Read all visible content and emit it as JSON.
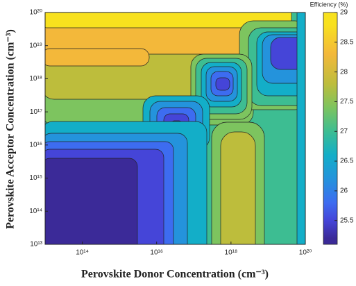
{
  "chart_data": {
    "type": "contour",
    "colorbar_label": "Efficiency (%)",
    "xlabel": "Perovskite Donor Concentration (cm⁻³)",
    "ylabel": "Perovskite Acceptor Concentration (cm⁻³)",
    "xscale": "log",
    "yscale": "log",
    "xlim": [
      10000000000000.0,
      1e+20
    ],
    "ylim": [
      10000000000000.0,
      1e+20
    ],
    "xticks": [
      {
        "value": 100000000000000.0,
        "label": "10¹⁴"
      },
      {
        "value": 1e+16,
        "label": "10¹⁶"
      },
      {
        "value": 1e+18,
        "label": "10¹⁸"
      },
      {
        "value": 1e+20,
        "label": "10²⁰"
      }
    ],
    "yticks": [
      {
        "value": 10000000000000.0,
        "label": "10¹³"
      },
      {
        "value": 100000000000000.0,
        "label": "10¹⁴"
      },
      {
        "value": 1000000000000000.0,
        "label": "10¹⁵"
      },
      {
        "value": 1e+16,
        "label": "10¹⁶"
      },
      {
        "value": 1e+17,
        "label": "10¹⁷"
      },
      {
        "value": 1e+18,
        "label": "10¹⁸"
      },
      {
        "value": 1e+19,
        "label": "10¹⁹"
      },
      {
        "value": 1e+20,
        "label": "10²⁰"
      }
    ],
    "clim": [
      25.1,
      29
    ],
    "cticks": [
      25.5,
      26,
      26.5,
      27,
      27.5,
      28,
      28.5,
      29
    ],
    "levels": [
      25.2,
      25.5,
      25.8,
      26.2,
      26.6,
      27.0,
      27.4,
      27.8,
      28.3,
      28.8
    ],
    "level_colors": [
      "#3b2a98",
      "#4545d8",
      "#3d6cf0",
      "#2493dc",
      "#13aec8",
      "#3dbd92",
      "#7dc45f",
      "#bdbd3c",
      "#f3b83a",
      "#f8e11e"
    ]
  }
}
